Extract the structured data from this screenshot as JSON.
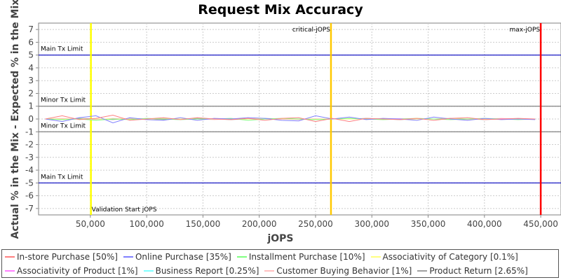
{
  "chart_data": {
    "type": "line",
    "title": "Request Mix Accuracy",
    "xlabel": "jOPS",
    "ylabel": "Actual % in the Mix - Expected % in the Mix",
    "xlim": [
      4000,
      468000
    ],
    "ylim": [
      -7.5,
      7.5
    ],
    "xticks": [
      50000,
      100000,
      150000,
      200000,
      250000,
      300000,
      350000,
      400000,
      450000
    ],
    "xtick_labels": [
      "50,000",
      "100,000",
      "150,000",
      "200,000",
      "250,000",
      "300,000",
      "350,000",
      "400,000",
      "450,000"
    ],
    "yticks": [
      7,
      6,
      5,
      4,
      3,
      2,
      1,
      0,
      -1,
      -2,
      -3,
      -4,
      -5,
      -6,
      -7
    ],
    "grid": true,
    "legend_position": "bottom",
    "reference_lines_h": [
      {
        "label": "Main Tx Limit",
        "y": 5,
        "color": "#0000c0"
      },
      {
        "label": "Minor Tx Limit",
        "y": 1,
        "color": "#808080"
      },
      {
        "label": "Minor Tx Limit",
        "y": -1,
        "color": "#808080"
      },
      {
        "label": "Main Tx Limit",
        "y": -5,
        "color": "#0000c0"
      }
    ],
    "reference_lines_v": [
      {
        "label": "Validation Start jOPS",
        "x": 50500,
        "color": "#ffff00"
      },
      {
        "label": "critical-jOPS",
        "x": 263700,
        "color": "#ffc800"
      },
      {
        "label": "max-jOPS",
        "x": 450000,
        "color": "#ff0000"
      }
    ],
    "x": [
      10000,
      25000,
      40000,
      55000,
      70000,
      85000,
      100000,
      115000,
      130000,
      145000,
      160000,
      175000,
      190000,
      205000,
      220000,
      235000,
      250000,
      265000,
      280000,
      295000,
      310000,
      325000,
      340000,
      355000,
      370000,
      385000,
      400000,
      415000,
      430000,
      445000
    ],
    "series": [
      {
        "name": "In-store Purchase [50%]",
        "color": "#ff8080",
        "values": [
          0,
          0.25,
          -0.05,
          0.05,
          0.3,
          -0.1,
          0,
          0.1,
          -0.05,
          0.1,
          0,
          -0.05,
          0.05,
          -0.1,
          0.05,
          0.1,
          -0.2,
          0.05,
          -0.2,
          0.05,
          0,
          -0.05,
          0.05,
          -0.1,
          0.05,
          0.1,
          -0.05,
          0,
          0.05,
          0
        ]
      },
      {
        "name": "Online Purchase [35%]",
        "color": "#8080ff",
        "values": [
          0,
          -0.2,
          0.1,
          0.25,
          -0.3,
          0.1,
          -0.05,
          -0.1,
          0.1,
          -0.1,
          0.05,
          0,
          0.1,
          0.05,
          -0.1,
          -0.15,
          0.25,
          0,
          0.15,
          -0.05,
          0.05,
          0,
          -0.1,
          0.15,
          0,
          -0.1,
          0.05,
          -0.05,
          0,
          -0.05
        ]
      },
      {
        "name": "Installment Purchase [10%]",
        "color": "#80ff80",
        "values": [
          0,
          -0.05,
          0,
          -0.1,
          0,
          -0.05,
          0.05,
          0,
          -0.05,
          0,
          0,
          0.05,
          -0.1,
          0,
          0.05,
          0,
          -0.05,
          0,
          0.05,
          0,
          -0.05,
          0,
          0.05,
          0,
          -0.05,
          0,
          0.05,
          0,
          -0.05,
          0
        ]
      },
      {
        "name": "Associativity of Category [0.1%]",
        "color": "#ffff80",
        "values": [
          0,
          0,
          0,
          0,
          0,
          0,
          0,
          0,
          0,
          0,
          0,
          0,
          0,
          0,
          0,
          0,
          0,
          0,
          0,
          0,
          0,
          0,
          0,
          0,
          0,
          0,
          0,
          0,
          0,
          0
        ]
      },
      {
        "name": "Associativity of Product [1%]",
        "color": "#ff80ff",
        "values": [
          0,
          0.02,
          0,
          -0.02,
          0,
          0.02,
          0,
          0,
          -0.02,
          0,
          0.02,
          0,
          0,
          0,
          -0.02,
          0,
          0.02,
          0,
          0,
          0,
          0,
          0.02,
          0,
          0,
          -0.02,
          0,
          0,
          0.02,
          0,
          0
        ]
      },
      {
        "name": "Business Report [0.25%]",
        "color": "#80ffff",
        "values": [
          0,
          0,
          0,
          0,
          0,
          0,
          0,
          0,
          0,
          0,
          0,
          0,
          0,
          0,
          0,
          0,
          0,
          0,
          0,
          0,
          0,
          0,
          0,
          0,
          0,
          0,
          0,
          0,
          0,
          0
        ]
      },
      {
        "name": "Customer Buying Behavior [1%]",
        "color": "#ffc0c0",
        "values": [
          0,
          0.05,
          0,
          -0.05,
          0.05,
          0,
          -0.05,
          0.05,
          0,
          0,
          -0.05,
          0,
          0.05,
          0,
          0,
          -0.05,
          0,
          0,
          0.05,
          0,
          -0.05,
          0,
          0.05,
          0,
          0,
          -0.05,
          0,
          0.05,
          0,
          0
        ]
      },
      {
        "name": "Product Return [2.65%]",
        "color": "#a0a0a0",
        "values": [
          0,
          -0.05,
          0.05,
          0,
          -0.05,
          0.05,
          0,
          -0.05,
          0,
          0.05,
          0,
          -0.05,
          0,
          0.05,
          0,
          0,
          -0.05,
          0,
          0,
          0.05,
          0,
          -0.05,
          0,
          0,
          0.05,
          0,
          -0.05,
          0,
          0,
          0
        ]
      }
    ]
  }
}
